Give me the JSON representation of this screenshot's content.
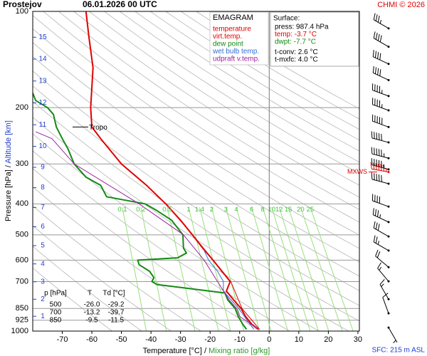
{
  "header": {
    "station": "Prostejov",
    "time": "06.01.2026 00 UTC",
    "credit": "CHMI © 2026"
  },
  "chart_data": {
    "type": "emagram",
    "title": "EMAGRAM",
    "xlabel": "Temperature [°C]",
    "separator": "/",
    "xlabel2": "Mixing ratio [g/kg]",
    "ylabel": "Pressure [hPa]",
    "ylabel2": "Altitude [km]",
    "xlim": [
      -80,
      30.5
    ],
    "xticks": [
      -70,
      -60,
      -50,
      -40,
      -30,
      -20,
      -10,
      0,
      10,
      20,
      30
    ],
    "ylim": [
      1000,
      100
    ],
    "yticks": [
      100,
      200,
      300,
      400,
      500,
      600,
      700,
      850,
      925,
      1000
    ],
    "y_log": true,
    "isotherm": 0,
    "altitude_ticks": [
      1,
      2,
      3,
      4,
      5,
      6,
      7,
      8,
      9,
      10,
      11,
      12,
      13,
      14,
      15
    ],
    "altitude_color": "#1f3fd0",
    "mixing_ratios": [
      0.1,
      0.2,
      0.5,
      1,
      1.4,
      2,
      3,
      4,
      6,
      8,
      10,
      12,
      15,
      20,
      25
    ],
    "mixing_color": "#2a9a2a",
    "series": [
      {
        "name": "temperature",
        "color": "#e00000",
        "width": 2,
        "pressure": [
          987.4,
          950,
          900,
          850,
          800,
          750,
          700,
          650,
          600,
          550,
          500,
          450,
          400,
          350,
          300,
          250,
          230,
          200,
          150,
          120,
          100
        ],
        "values": [
          -3.7,
          -6,
          -8,
          -9.5,
          -12,
          -14.5,
          -13.2,
          -16,
          -19,
          -22.5,
          -26,
          -30,
          -35,
          -41.5,
          -50,
          -57,
          -60,
          -60.4,
          -59.6,
          -61,
          -62
        ]
      },
      {
        "name": "virt.temp.",
        "color": "#e00000",
        "width": 1,
        "pressure": [
          987.4,
          850,
          700,
          600,
          500,
          400
        ],
        "values": [
          -3.3,
          -9.2,
          -13,
          -18.9,
          -25.9,
          -35
        ]
      },
      {
        "name": "dew point",
        "color": "#138a13",
        "width": 2,
        "pressure": [
          987.4,
          950,
          900,
          850,
          800,
          760,
          715,
          700,
          680,
          650,
          620,
          600,
          590,
          570,
          550,
          500,
          450,
          420,
          400,
          380,
          350,
          330,
          300,
          270,
          250,
          230,
          210,
          200,
          190,
          180
        ],
        "values": [
          -7.7,
          -9,
          -10.5,
          -11.5,
          -14,
          -15,
          -38,
          -39.7,
          -39,
          -40.5,
          -44,
          -44.5,
          -31,
          -28,
          -29,
          -29.2,
          -33,
          -38,
          -42,
          -55,
          -57,
          -62,
          -66,
          -68,
          -70,
          -72,
          -73,
          -75,
          -79,
          -80
        ]
      },
      {
        "name": "wet bulb temp.",
        "color": "#2f6fd8",
        "width": 1,
        "pressure": [
          987.4,
          925,
          850,
          800,
          750,
          700,
          650,
          600,
          560
        ],
        "values": [
          -5.2,
          -7.5,
          -10.3,
          -12.8,
          -15.5,
          -15.5,
          -17.5,
          -20.5,
          -22
        ]
      },
      {
        "name": "udpraft v.temp.",
        "color": "#a020a0",
        "width": 1,
        "pressure": [
          987.4,
          900,
          850,
          800,
          700,
          600,
          500,
          400,
          300,
          250,
          238
        ],
        "values": [
          -3.7,
          -10,
          -11,
          -13.5,
          -17.5,
          -22,
          -29,
          -44,
          -66,
          -73.5,
          -79
        ]
      }
    ],
    "tropopause": {
      "label": "Tropo",
      "pressure": 230
    },
    "winds": {
      "color": "#000000",
      "pressure": [
        113,
        129,
        146,
        164,
        184,
        204,
        230,
        257,
        288,
        312,
        318,
        346,
        408,
        456,
        506,
        560,
        631,
        699,
        795,
        880,
        975
      ],
      "direction": [
        300,
        300,
        295,
        295,
        290,
        290,
        290,
        285,
        285,
        285,
        280,
        285,
        290,
        295,
        300,
        300,
        310,
        320,
        330,
        340,
        150
      ],
      "speed": [
        35,
        40,
        40,
        40,
        45,
        45,
        50,
        50,
        55,
        55,
        65,
        50,
        40,
        35,
        30,
        25,
        20,
        15,
        15,
        10,
        5
      ]
    },
    "mxws": {
      "label": "MXWS",
      "pressure": 318,
      "color": "#e00000"
    },
    "sfc_label": "SFC: 215 m ASL"
  },
  "surface": {
    "title": "Surface:",
    "lines": [
      {
        "text": "press: 987.4 hPa",
        "color": "#000000"
      },
      {
        "text": "temp: -3.7 °C",
        "color": "#e00000"
      },
      {
        "text": "dwpt: -7.7 °C",
        "color": "#138a13"
      },
      {
        "text": "t-conv: 2.6 °C",
        "color": "#000000"
      },
      {
        "text": "t-mxfc: 4.0 °C",
        "color": "#000000"
      }
    ]
  },
  "table": {
    "header": [
      "p [hPa]",
      "T",
      "Td [°C]"
    ],
    "rows": [
      [
        "500",
        "-26.0",
        "-29.2"
      ],
      [
        "700",
        "-13.2",
        "-39.7"
      ],
      [
        "850",
        "-9.5",
        "-11.5"
      ]
    ]
  }
}
